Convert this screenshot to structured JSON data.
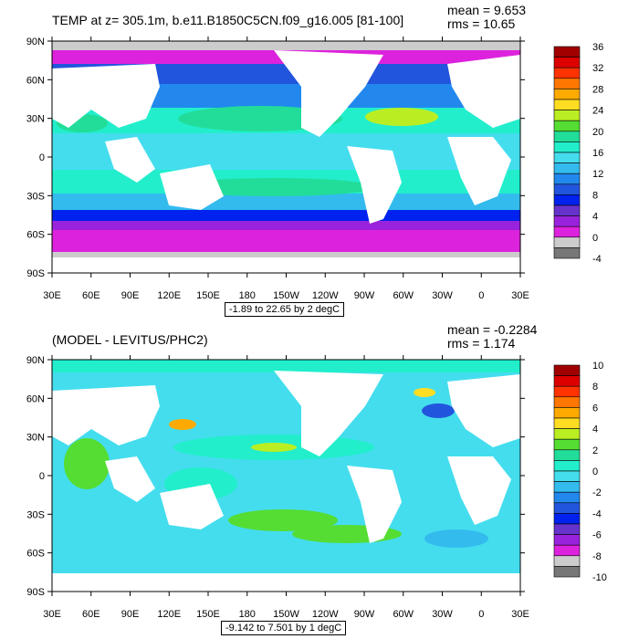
{
  "panels": [
    {
      "title": "TEMP at z= 305.1m, b.e11.B1850C5CN.f09_g16.005 [81-100]",
      "mean": "mean = 9.653",
      "rms": "rms = 10.65",
      "caption": "-1.89 to 22.65 by 2 degC",
      "lat_labels": [
        "90N",
        "60N",
        "30N",
        "0",
        "30S",
        "60S",
        "90S"
      ],
      "lon_labels": [
        "30E",
        "60E",
        "90E",
        "120E",
        "150E",
        "180",
        "150W",
        "120W",
        "90W",
        "60W",
        "30W",
        "0",
        "30E"
      ],
      "colorbar_labels": [
        "36",
        "32",
        "28",
        "24",
        "20",
        "16",
        "12",
        "8",
        "4",
        "0",
        "-4"
      ],
      "colorbar_colors": [
        "#a00000",
        "#dd0000",
        "#ff3300",
        "#ff7700",
        "#ffaa00",
        "#ffdd22",
        "#bbee22",
        "#55dd33",
        "#22dd99",
        "#22eecc",
        "#44ddee",
        "#33bbee",
        "#2288ee",
        "#2255dd",
        "#0022ee",
        "#6633cc",
        "#9922dd",
        "#dd22dd",
        "#cccccc",
        "#777777"
      ]
    },
    {
      "title": "(MODEL - LEVITUS/PHC2)",
      "mean": "mean = -0.2284",
      "rms": "rms = 1.174",
      "caption": "-9.142 to 7.501 by 1 degC",
      "lat_labels": [
        "90N",
        "60N",
        "30N",
        "0",
        "30S",
        "60S",
        "90S"
      ],
      "lon_labels": [
        "30E",
        "60E",
        "90E",
        "120E",
        "150E",
        "180",
        "150W",
        "120W",
        "90W",
        "60W",
        "30W",
        "0",
        "30E"
      ],
      "colorbar_labels": [
        "10",
        "8",
        "6",
        "4",
        "2",
        "0",
        "-2",
        "-4",
        "-6",
        "-8",
        "-10"
      ],
      "colorbar_colors": [
        "#a00000",
        "#dd0000",
        "#ff3300",
        "#ff7700",
        "#ffaa00",
        "#ffdd22",
        "#bbee22",
        "#55dd33",
        "#22dd99",
        "#22eecc",
        "#44ddee",
        "#33bbee",
        "#2288ee",
        "#2255dd",
        "#0022ee",
        "#6633cc",
        "#9922dd",
        "#dd22dd",
        "#cccccc",
        "#777777"
      ]
    }
  ],
  "colors": {
    "ocean_top": "#44ddee",
    "ocean_bottom": "#22eecc",
    "land": "#ffffff",
    "ice": "#cccccc"
  }
}
